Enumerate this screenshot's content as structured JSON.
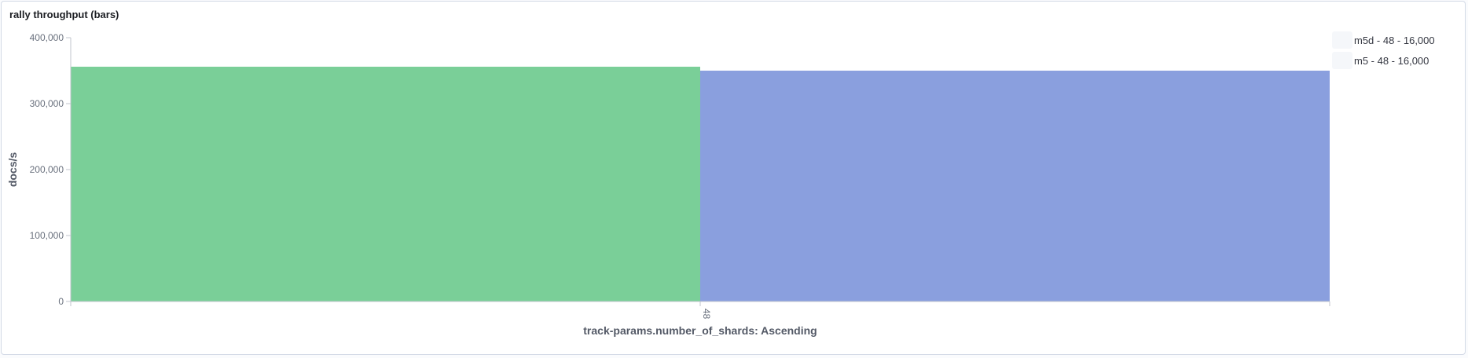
{
  "panel": {
    "title": "rally throughput (bars)"
  },
  "legend": {
    "items": [
      {
        "label": "m5d - 48 - 16,000"
      },
      {
        "label": "m5 - 48 - 16,000"
      }
    ]
  },
  "chart_data": {
    "type": "bar",
    "title": "rally throughput (bars)",
    "xlabel": "track-params.number_of_shards: Ascending",
    "ylabel": "docs/s",
    "categories": [
      "48"
    ],
    "series": [
      {
        "name": "m5d - 48 - 16,000",
        "values": [
          356000
        ],
        "color": "#7acf98"
      },
      {
        "name": "m5 - 48 - 16,000",
        "values": [
          350000
        ],
        "color": "#8a9fde"
      }
    ],
    "ylim": [
      0,
      400000
    ],
    "yticks": [
      {
        "value": 0,
        "label": "0"
      },
      {
        "value": 100000,
        "label": "100,000"
      },
      {
        "value": 200000,
        "label": "200,000"
      },
      {
        "value": 300000,
        "label": "300,000"
      },
      {
        "value": 400000,
        "label": "400,000"
      }
    ],
    "grid": false,
    "legend_position": "top-right"
  }
}
